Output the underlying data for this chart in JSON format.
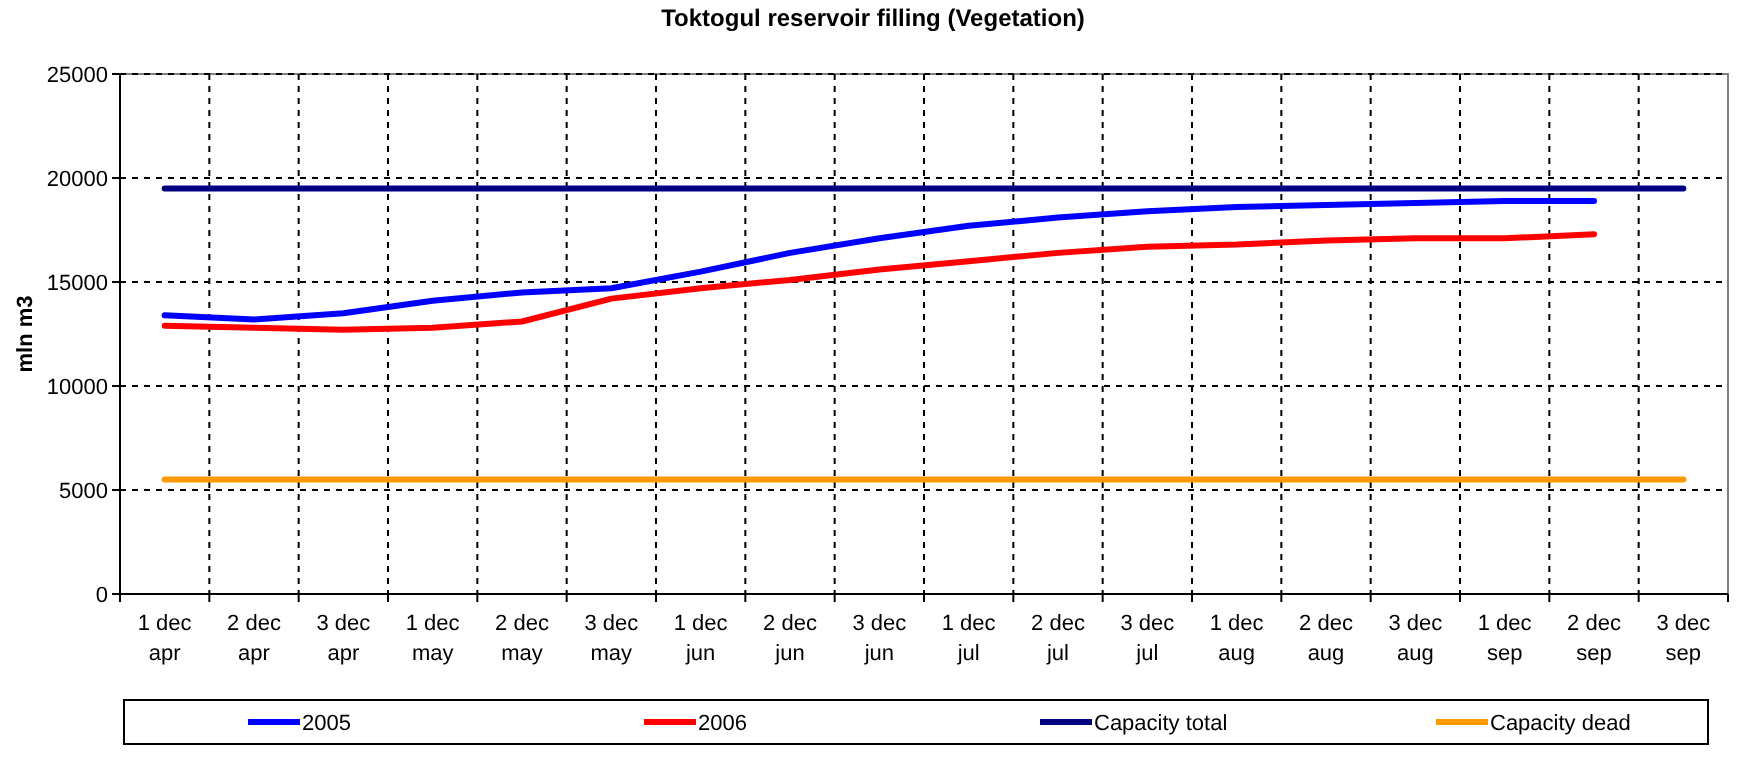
{
  "chart_data": {
    "type": "line",
    "title": "Toktogul  reservoir filling (Vegetation)",
    "ylabel": "mln m3",
    "categories": [
      "1 dec\napr",
      "2 dec\napr",
      "3 dec\napr",
      "1 dec\nmay",
      "2 dec\nmay",
      "3 dec\nmay",
      "1 dec\njun",
      "2 dec\njun",
      "3 dec\njun",
      "1 dec\njul",
      "2 dec\njul",
      "3 dec\njul",
      "1 dec\naug",
      "2 dec\naug",
      "3 dec\naug",
      "1 dec\nsep",
      "2 dec\nsep",
      "3 dec\nsep"
    ],
    "series": [
      {
        "name": "2005",
        "color": "#0000ff",
        "values": [
          13400,
          13200,
          13500,
          14100,
          14500,
          14700,
          15500,
          16400,
          17100,
          17700,
          18100,
          18400,
          18600,
          18700,
          18800,
          18900,
          18900,
          null
        ]
      },
      {
        "name": "2006",
        "color": "#ff0000",
        "values": [
          12900,
          12800,
          12700,
          12800,
          13100,
          14200,
          14700,
          15100,
          15600,
          16000,
          16400,
          16700,
          16800,
          17000,
          17100,
          17100,
          17300,
          null
        ]
      },
      {
        "name": "Capacity total",
        "color": "#000080",
        "values": [
          19500,
          19500,
          19500,
          19500,
          19500,
          19500,
          19500,
          19500,
          19500,
          19500,
          19500,
          19500,
          19500,
          19500,
          19500,
          19500,
          19500,
          19500
        ]
      },
      {
        "name": "Capacity dead",
        "color": "#ff9900",
        "values": [
          5500,
          5500,
          5500,
          5500,
          5500,
          5500,
          5500,
          5500,
          5500,
          5500,
          5500,
          5500,
          5500,
          5500,
          5500,
          5500,
          5500,
          5500
        ]
      }
    ],
    "ylim": [
      0,
      25000
    ],
    "yticks": [
      0,
      5000,
      10000,
      15000,
      20000,
      25000
    ],
    "grid": true,
    "legend": "bottom",
    "marker": "none",
    "line_style": "solid"
  }
}
